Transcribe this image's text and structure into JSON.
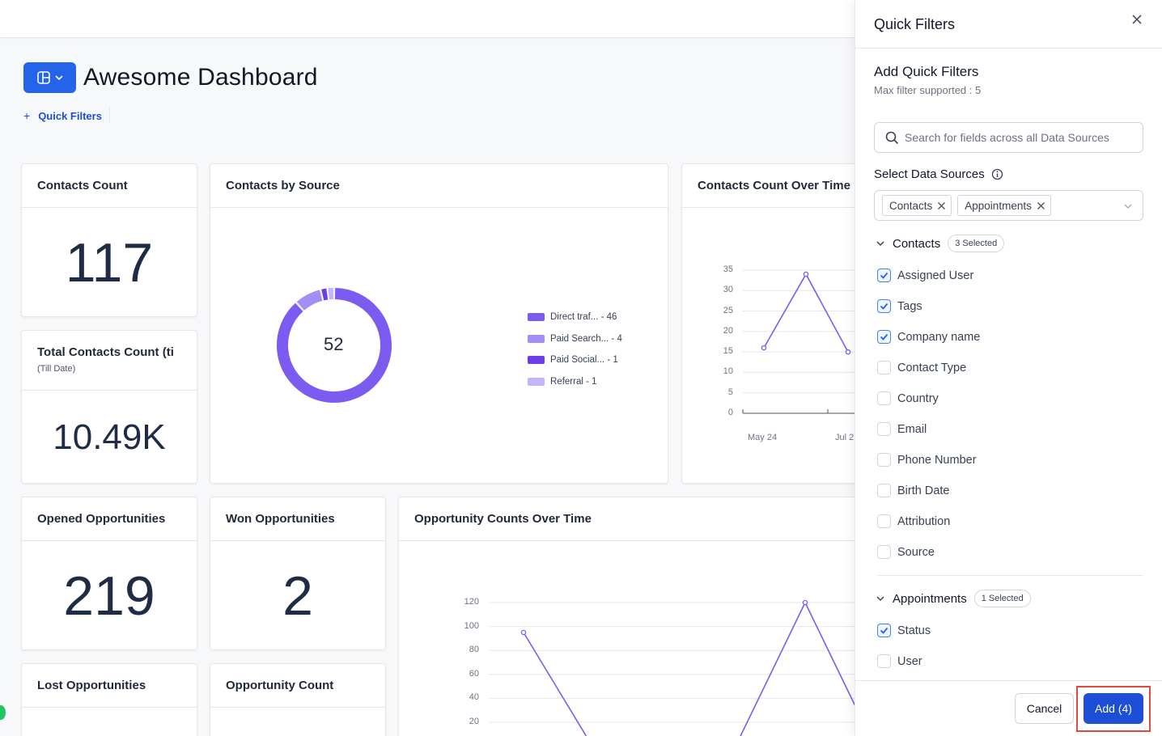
{
  "dashboard": {
    "title": "Awesome Dashboard",
    "quick_filters_label": "Quick Filters"
  },
  "cards": {
    "contacts_count": {
      "title": "Contacts Count",
      "value": "117"
    },
    "total_contacts": {
      "title": "Total Contacts Count (ti",
      "subtitle": "(Till Date)",
      "value": "10.49K"
    },
    "opened_opps": {
      "title": "Opened Opportunities",
      "value": "219"
    },
    "won_opps": {
      "title": "Won Opportunities",
      "value": "2"
    },
    "lost_opps": {
      "title": "Lost Opportunities"
    },
    "opp_count": {
      "title": "Opportunity Count"
    },
    "contacts_by_source": {
      "title": "Contacts by Source",
      "center": "52"
    },
    "contacts_over_time": {
      "title": "Contacts Count Over Time"
    },
    "opps_over_time": {
      "title": "Opportunity Counts Over Time"
    }
  },
  "chart_data": [
    {
      "type": "pie",
      "title": "Contacts by Source",
      "center_label": "52",
      "categories": [
        "Direct traf...",
        "Paid Search...",
        "Paid Social...",
        "Referral"
      ],
      "values": [
        46,
        4,
        1,
        1
      ],
      "legend": [
        "Direct traf... - 46",
        "Paid Search... - 4",
        "Paid Social... - 1",
        "Referral - 1"
      ],
      "colors": [
        "#7c5cf0",
        "#a38ef5",
        "#6d3ee8",
        "#c4b5fb"
      ]
    },
    {
      "type": "line",
      "title": "Contacts Count Over Time",
      "yticks": [
        "35",
        "30",
        "25",
        "20",
        "15",
        "10",
        "5",
        "0"
      ],
      "ylim": [
        0,
        35
      ],
      "xticks": [
        "May 24",
        "Jul 2"
      ],
      "series": [
        {
          "values": [
            16,
            34,
            15
          ]
        }
      ],
      "color": "#7c5cf0"
    },
    {
      "type": "line",
      "title": "Opportunity Counts Over Time",
      "yticks": [
        "120",
        "100",
        "80",
        "60",
        "40",
        "20"
      ],
      "series": [
        {
          "values": [
            95,
            0,
            0,
            120,
            0
          ]
        }
      ],
      "color": "#7c5cf0"
    }
  ],
  "panel": {
    "title": "Quick Filters",
    "section_title": "Add Quick Filters",
    "section_sub": "Max filter supported : 5",
    "search_placeholder": "Search for fields across all Data Sources",
    "ds_label": "Select Data Sources",
    "data_sources": [
      "Contacts",
      "Appointments"
    ],
    "groups": [
      {
        "name": "Contacts",
        "badge": "3 Selected",
        "fields": [
          {
            "label": "Assigned User",
            "checked": true
          },
          {
            "label": "Tags",
            "checked": true
          },
          {
            "label": "Company name",
            "checked": true
          },
          {
            "label": "Contact Type",
            "checked": false
          },
          {
            "label": "Country",
            "checked": false
          },
          {
            "label": "Email",
            "checked": false
          },
          {
            "label": "Phone Number",
            "checked": false
          },
          {
            "label": "Birth Date",
            "checked": false
          },
          {
            "label": "Attribution",
            "checked": false
          },
          {
            "label": "Source",
            "checked": false
          }
        ]
      },
      {
        "name": "Appointments",
        "badge": "1 Selected",
        "fields": [
          {
            "label": "Status",
            "checked": true
          },
          {
            "label": "User",
            "checked": false
          }
        ]
      }
    ],
    "cancel_label": "Cancel",
    "add_label": "Add (4)"
  },
  "colors": {
    "accent": "#1d4ed8",
    "chart": "#7c5cf0",
    "highlight": "#e04a3a"
  }
}
